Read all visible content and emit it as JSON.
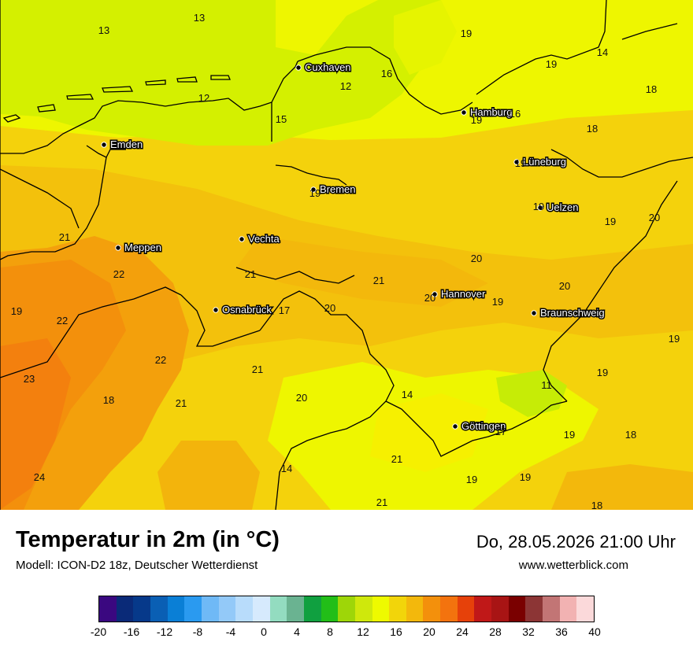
{
  "map": {
    "cities": [
      {
        "name": "Cuxhaven"
      },
      {
        "name": "Emden"
      },
      {
        "name": "Hamburg"
      },
      {
        "name": "Lüneburg"
      },
      {
        "name": "Bremen"
      },
      {
        "name": "Uelzen"
      },
      {
        "name": "Meppen"
      },
      {
        "name": "Vechta"
      },
      {
        "name": "Hannover"
      },
      {
        "name": "Osnabrück"
      },
      {
        "name": "Braunschweig"
      },
      {
        "name": "Göttingen"
      }
    ],
    "temperatures": [
      "13",
      "13",
      "19",
      "14",
      "16",
      "12",
      "19",
      "12",
      "18",
      "15",
      "19",
      "16",
      "18",
      "19",
      "19",
      "19",
      "19",
      "21",
      "20",
      "20",
      "21",
      "22",
      "19",
      "21",
      "19",
      "17",
      "20",
      "22",
      "20",
      "20",
      "22",
      "21",
      "19",
      "23",
      "18",
      "21",
      "20",
      "14",
      "11",
      "19",
      "17",
      "19",
      "18",
      "24",
      "21",
      "14",
      "19",
      "19",
      "21",
      "18"
    ]
  },
  "footer": {
    "title": "Temperatur in 2m (in °C)",
    "model": "Modell: ICON-D2 18z, Deutscher Wetterdienst",
    "datetime": "Do, 28.05.2026 21:00 Uhr",
    "website": "www.wetterblick.com"
  },
  "legend": {
    "colors": [
      "#3a0880",
      "#0a2a78",
      "#06398a",
      "#0a5fb4",
      "#0a7fd6",
      "#2a9af0",
      "#6fb9f6",
      "#93c9f8",
      "#b8dcfb",
      "#d6eafd",
      "#93dcc0",
      "#6ab391",
      "#10a040",
      "#22be18",
      "#9ed608",
      "#cfe80c",
      "#eefa00",
      "#f2d50a",
      "#f3b80c",
      "#f3900c",
      "#f3730e",
      "#e6410a",
      "#c01818",
      "#a81414",
      "#7a0000",
      "#8c3535",
      "#c27575",
      "#f2b2b2",
      "#fbd9da"
    ],
    "ticks": [
      "-20",
      "-16",
      "-12",
      "-8",
      "-4",
      "0",
      "4",
      "8",
      "12",
      "16",
      "20",
      "24",
      "28",
      "32",
      "36",
      "40"
    ]
  }
}
